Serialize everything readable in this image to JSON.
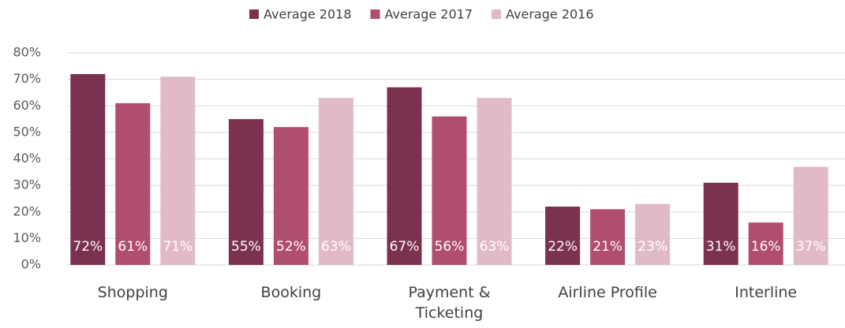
{
  "chart_data": {
    "type": "bar",
    "categories": [
      "Shopping",
      "Booking",
      "Payment & Ticketing",
      "Airline Profile",
      "Interline"
    ],
    "series": [
      {
        "name": "Average 2018",
        "color": "#7b3150",
        "values": [
          72,
          55,
          67,
          22,
          31
        ],
        "value_labels": [
          "72%",
          "55%",
          "67%",
          "22%",
          "31%"
        ]
      },
      {
        "name": "Average 2017",
        "color": "#b04d70",
        "values": [
          61,
          52,
          56,
          21,
          16
        ],
        "value_labels": [
          "61%",
          "52%",
          "56%",
          "21%",
          "16%"
        ]
      },
      {
        "name": "Average 2016",
        "color": "#e2b9c8",
        "values": [
          71,
          63,
          63,
          23,
          37
        ],
        "value_labels": [
          "71%",
          "63%",
          "63%",
          "23%",
          "37%"
        ]
      }
    ],
    "ylim": [
      0,
      80
    ],
    "yticks": [
      {
        "value": 0,
        "label": "0%"
      },
      {
        "value": 10,
        "label": "10%"
      },
      {
        "value": 20,
        "label": "20%"
      },
      {
        "value": 30,
        "label": "30%"
      },
      {
        "value": 40,
        "label": "40%"
      },
      {
        "value": 50,
        "label": "50%"
      },
      {
        "value": 60,
        "label": "60%"
      },
      {
        "value": 70,
        "label": "70%"
      },
      {
        "value": 80,
        "label": "80%"
      }
    ],
    "grid": true,
    "legend": "top"
  }
}
